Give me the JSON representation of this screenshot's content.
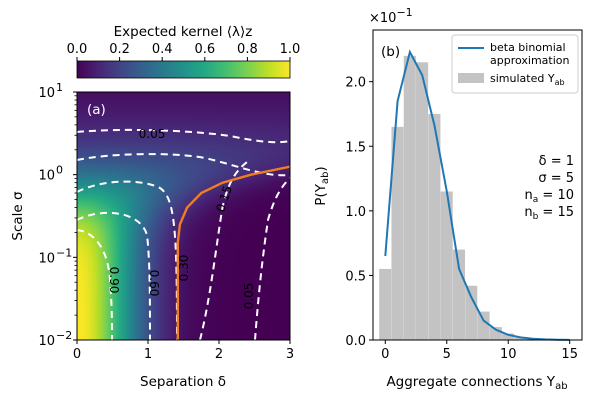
{
  "chart_data": [
    {
      "panel": "(a)",
      "type": "heatmap",
      "colorbar": {
        "label": "Expected kernel ⟨λ⟩z",
        "ticks": [
          "0.0",
          "0.2",
          "0.4",
          "0.6",
          "0.8",
          "1.0"
        ],
        "range": [
          0,
          1
        ]
      },
      "xlabel": "Separation δ",
      "ylabel": "Scale σ",
      "xlim": [
        0,
        3
      ],
      "ylim": [
        0.01,
        10
      ],
      "yscale": "log",
      "xticks": [
        "0",
        "1",
        "2",
        "3"
      ],
      "yticks": [
        {
          "base": "10",
          "exp": "−2"
        },
        {
          "base": "10",
          "exp": "−1"
        },
        {
          "base": "10",
          "exp": "0"
        },
        {
          "base": "10",
          "exp": "1"
        }
      ],
      "contour_labels": [
        "0.05",
        "0.15",
        "0.30",
        "0.60",
        "0.90",
        "0.30",
        "0.05"
      ],
      "contour_levels": [
        0.05,
        0.15,
        0.3,
        0.6,
        0.9
      ],
      "orange_curve": {
        "x": [
          1.42,
          1.42,
          1.45,
          1.55,
          1.75,
          2.05,
          2.45,
          3.0
        ],
        "y": [
          0.01,
          0.15,
          0.25,
          0.4,
          0.6,
          0.8,
          1.0,
          1.25
        ]
      }
    },
    {
      "panel": "(b)",
      "type": "bar",
      "xlabel": "Aggregate connections Yab",
      "ylabel": "P(Yab)",
      "y_multiplier": {
        "base": "×10",
        "exp": "−1"
      },
      "xlim": [
        -1,
        16
      ],
      "ylim": [
        0,
        2.4
      ],
      "xticks": [
        "0",
        "5",
        "10",
        "15"
      ],
      "yticks": [
        "0.0",
        "0.5",
        "1.0",
        "1.5",
        "2.0"
      ],
      "series": [
        {
          "name": "simulated Yab",
          "x": [
            0,
            1,
            2,
            3,
            4,
            5,
            6,
            7,
            8,
            9,
            10,
            11,
            12,
            13,
            14,
            15
          ],
          "values": [
            0.55,
            1.65,
            2.2,
            2.15,
            1.75,
            1.15,
            0.7,
            0.42,
            0.22,
            0.1,
            0.05,
            0.02,
            0.01,
            0.004,
            0.002,
            0.001
          ]
        },
        {
          "name": "beta binomial approximation",
          "x": [
            0,
            1,
            2,
            3,
            4,
            5,
            6,
            7,
            8,
            9,
            10,
            11,
            12,
            13,
            14,
            15
          ],
          "values": [
            0.65,
            1.85,
            2.23,
            2.05,
            1.66,
            1.15,
            0.55,
            0.33,
            0.15,
            0.08,
            0.04,
            0.02,
            0.01,
            0.005,
            0.002,
            0.001
          ]
        }
      ],
      "legend": {
        "placement": "top-right",
        "line_label": [
          "beta binomial",
          "approximation"
        ],
        "bar_label": "simulated Yab"
      },
      "params": [
        "δ = 1",
        "σ = 5",
        "na = 10",
        "nb = 15"
      ]
    }
  ],
  "colors": {
    "orange": "#ef7d22",
    "line": "#1f77b4",
    "bars": "#c3c3c3"
  }
}
